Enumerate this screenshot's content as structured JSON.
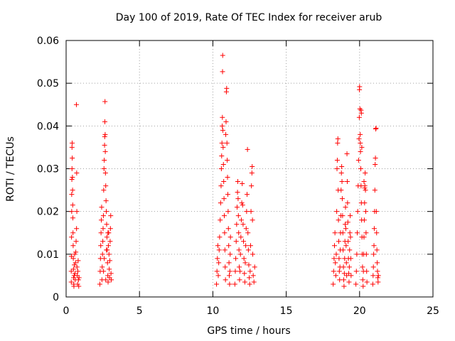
{
  "chart_data": {
    "type": "scatter",
    "title": "Day 100 of 2019, Rate Of TEC Index for receiver arub",
    "xlabel": "GPS time / hours",
    "ylabel": "ROTI / TECUs",
    "xlim": [
      0,
      25
    ],
    "ylim": [
      0,
      0.06
    ],
    "x_ticks": [
      0,
      5,
      10,
      15,
      20,
      25
    ],
    "y_ticks": [
      0,
      0.01,
      0.02,
      0.03,
      0.04,
      0.05,
      0.06
    ],
    "x_tick_labels": [
      "0",
      "5",
      "10",
      "15",
      "20",
      "25"
    ],
    "y_tick_labels": [
      "0",
      "0.01",
      "0.02",
      "0.03",
      "0.04",
      "0.05",
      "0.06"
    ],
    "grid": true,
    "marker": "+",
    "color": "#ff0000",
    "points": [
      [
        0.35,
        0.0035
      ],
      [
        0.35,
        0.006
      ],
      [
        0.36,
        0.0095
      ],
      [
        0.37,
        0.014
      ],
      [
        0.38,
        0.02
      ],
      [
        0.38,
        0.024
      ],
      [
        0.39,
        0.0275
      ],
      [
        0.4,
        0.03
      ],
      [
        0.4,
        0.035
      ],
      [
        0.41,
        0.036
      ],
      [
        0.42,
        0.0325
      ],
      [
        0.43,
        0.028
      ],
      [
        0.44,
        0.025
      ],
      [
        0.45,
        0.0215
      ],
      [
        0.46,
        0.0185
      ],
      [
        0.47,
        0.015
      ],
      [
        0.48,
        0.012
      ],
      [
        0.49,
        0.009
      ],
      [
        0.5,
        0.0065
      ],
      [
        0.51,
        0.0045
      ],
      [
        0.52,
        0.003
      ],
      [
        0.53,
        0.0025
      ],
      [
        0.55,
        0.005
      ],
      [
        0.56,
        0.0075
      ],
      [
        0.58,
        0.01
      ],
      [
        0.6,
        0.0055
      ],
      [
        0.62,
        0.004
      ],
      [
        0.64,
        0.008
      ],
      [
        0.66,
        0.0105
      ],
      [
        0.68,
        0.013
      ],
      [
        0.7,
        0.045
      ],
      [
        0.71,
        0.016
      ],
      [
        0.72,
        0.029
      ],
      [
        0.73,
        0.02
      ],
      [
        0.74,
        0.007
      ],
      [
        0.76,
        0.005
      ],
      [
        0.78,
        0.003
      ],
      [
        0.8,
        0.006
      ],
      [
        0.82,
        0.0085
      ],
      [
        0.84,
        0.004
      ],
      [
        0.86,
        0.0025
      ],
      [
        0.88,
        0.0045
      ],
      [
        2.3,
        0.003
      ],
      [
        2.32,
        0.006
      ],
      [
        2.34,
        0.009
      ],
      [
        2.36,
        0.012
      ],
      [
        2.38,
        0.015
      ],
      [
        2.4,
        0.018
      ],
      [
        2.42,
        0.021
      ],
      [
        2.44,
        0.004
      ],
      [
        2.46,
        0.007
      ],
      [
        2.48,
        0.01
      ],
      [
        2.5,
        0.013
      ],
      [
        2.52,
        0.016
      ],
      [
        2.54,
        0.019
      ],
      [
        2.56,
        0.025
      ],
      [
        2.58,
        0.03
      ],
      [
        2.6,
        0.032
      ],
      [
        2.62,
        0.0355
      ],
      [
        2.63,
        0.0375
      ],
      [
        2.64,
        0.041
      ],
      [
        2.65,
        0.0457
      ],
      [
        2.66,
        0.038
      ],
      [
        2.67,
        0.034
      ],
      [
        2.68,
        0.029
      ],
      [
        2.7,
        0.026
      ],
      [
        2.72,
        0.0225
      ],
      [
        2.74,
        0.02
      ],
      [
        2.76,
        0.017
      ],
      [
        2.78,
        0.014
      ],
      [
        2.8,
        0.011
      ],
      [
        2.82,
        0.008
      ],
      [
        2.84,
        0.005
      ],
      [
        2.86,
        0.0035
      ],
      [
        2.88,
        0.012
      ],
      [
        2.9,
        0.015
      ],
      [
        2.92,
        0.01
      ],
      [
        2.94,
        0.0065
      ],
      [
        2.96,
        0.0045
      ],
      [
        2.98,
        0.0085
      ],
      [
        3.0,
        0.013
      ],
      [
        3.02,
        0.016
      ],
      [
        3.04,
        0.019
      ],
      [
        3.06,
        0.0055
      ],
      [
        3.08,
        0.004
      ],
      [
        2.55,
        0.006
      ],
      [
        2.6,
        0.009
      ],
      [
        2.7,
        0.004
      ],
      [
        2.75,
        0.011
      ],
      [
        2.85,
        0.015
      ],
      [
        10.25,
        0.003
      ],
      [
        10.28,
        0.006
      ],
      [
        10.31,
        0.009
      ],
      [
        10.34,
        0.012
      ],
      [
        10.37,
        0.005
      ],
      [
        10.4,
        0.008
      ],
      [
        10.43,
        0.011
      ],
      [
        10.46,
        0.014
      ],
      [
        10.5,
        0.018
      ],
      [
        10.53,
        0.022
      ],
      [
        10.56,
        0.026
      ],
      [
        10.58,
        0.03
      ],
      [
        10.6,
        0.033
      ],
      [
        10.62,
        0.036
      ],
      [
        10.64,
        0.04
      ],
      [
        10.65,
        0.042
      ],
      [
        10.66,
        0.0527
      ],
      [
        10.67,
        0.0565
      ],
      [
        10.68,
        0.039
      ],
      [
        10.7,
        0.035
      ],
      [
        10.72,
        0.031
      ],
      [
        10.74,
        0.027
      ],
      [
        10.76,
        0.023
      ],
      [
        10.78,
        0.019
      ],
      [
        10.8,
        0.015
      ],
      [
        10.82,
        0.011
      ],
      [
        10.84,
        0.007
      ],
      [
        10.86,
        0.004
      ],
      [
        10.88,
        0.038
      ],
      [
        10.9,
        0.041
      ],
      [
        10.92,
        0.048
      ],
      [
        10.94,
        0.0488
      ],
      [
        10.96,
        0.036
      ],
      [
        10.98,
        0.032
      ],
      [
        11.0,
        0.028
      ],
      [
        11.02,
        0.024
      ],
      [
        11.04,
        0.02
      ],
      [
        11.06,
        0.016
      ],
      [
        11.08,
        0.012
      ],
      [
        11.1,
        0.008
      ],
      [
        11.12,
        0.005
      ],
      [
        11.14,
        0.003
      ],
      [
        11.16,
        0.006
      ],
      [
        11.18,
        0.01
      ],
      [
        11.2,
        0.014
      ],
      [
        11.5,
        0.003
      ],
      [
        11.53,
        0.006
      ],
      [
        11.56,
        0.009
      ],
      [
        11.59,
        0.013
      ],
      [
        11.62,
        0.017
      ],
      [
        11.65,
        0.021
      ],
      [
        11.68,
        0.0245
      ],
      [
        11.7,
        0.027
      ],
      [
        11.72,
        0.023
      ],
      [
        11.74,
        0.019
      ],
      [
        11.76,
        0.015
      ],
      [
        11.78,
        0.011
      ],
      [
        11.8,
        0.007
      ],
      [
        11.82,
        0.004
      ],
      [
        11.85,
        0.006
      ],
      [
        11.88,
        0.01
      ],
      [
        11.91,
        0.014
      ],
      [
        11.94,
        0.018
      ],
      [
        11.97,
        0.022
      ],
      [
        12.0,
        0.0265
      ],
      [
        12.03,
        0.0215
      ],
      [
        12.06,
        0.017
      ],
      [
        12.09,
        0.013
      ],
      [
        12.12,
        0.009
      ],
      [
        12.15,
        0.0055
      ],
      [
        12.18,
        0.0035
      ],
      [
        12.21,
        0.008
      ],
      [
        12.24,
        0.012
      ],
      [
        12.27,
        0.016
      ],
      [
        12.3,
        0.02
      ],
      [
        12.33,
        0.024
      ],
      [
        12.36,
        0.0345
      ],
      [
        12.39,
        0.015
      ],
      [
        12.42,
        0.011
      ],
      [
        12.45,
        0.0075
      ],
      [
        12.48,
        0.0045
      ],
      [
        12.51,
        0.003
      ],
      [
        12.54,
        0.006
      ],
      [
        12.57,
        0.012
      ],
      [
        12.6,
        0.02
      ],
      [
        12.63,
        0.026
      ],
      [
        12.66,
        0.029
      ],
      [
        12.68,
        0.0305
      ],
      [
        12.7,
        0.018
      ],
      [
        12.72,
        0.01
      ],
      [
        12.75,
        0.005
      ],
      [
        12.8,
        0.0035
      ],
      [
        12.85,
        0.007
      ],
      [
        18.2,
        0.003
      ],
      [
        18.23,
        0.006
      ],
      [
        18.26,
        0.009
      ],
      [
        18.29,
        0.012
      ],
      [
        18.32,
        0.015
      ],
      [
        18.35,
        0.008
      ],
      [
        18.38,
        0.005
      ],
      [
        18.41,
        0.01
      ],
      [
        18.44,
        0.02
      ],
      [
        18.46,
        0.03
      ],
      [
        18.48,
        0.032
      ],
      [
        18.5,
        0.036
      ],
      [
        18.52,
        0.037
      ],
      [
        18.54,
        0.025
      ],
      [
        18.56,
        0.018
      ],
      [
        18.58,
        0.013
      ],
      [
        18.6,
        0.009
      ],
      [
        18.62,
        0.006
      ],
      [
        18.64,
        0.004
      ],
      [
        18.66,
        0.007
      ],
      [
        18.68,
        0.011
      ],
      [
        18.7,
        0.015
      ],
      [
        18.72,
        0.019
      ],
      [
        18.74,
        0.025
      ],
      [
        18.76,
        0.029
      ],
      [
        18.78,
        0.0305
      ],
      [
        18.8,
        0.027
      ],
      [
        18.82,
        0.023
      ],
      [
        18.84,
        0.019
      ],
      [
        18.86,
        0.015
      ],
      [
        18.88,
        0.011
      ],
      [
        18.9,
        0.007
      ],
      [
        18.92,
        0.004
      ],
      [
        18.94,
        0.0025
      ],
      [
        18.96,
        0.0055
      ],
      [
        18.98,
        0.009
      ],
      [
        19.0,
        0.013
      ],
      [
        19.02,
        0.017
      ],
      [
        19.04,
        0.021
      ],
      [
        19.06,
        0.016
      ],
      [
        19.08,
        0.012
      ],
      [
        19.1,
        0.008
      ],
      [
        19.12,
        0.005
      ],
      [
        19.14,
        0.0335
      ],
      [
        19.16,
        0.027
      ],
      [
        19.18,
        0.022
      ],
      [
        19.2,
        0.0175
      ],
      [
        19.22,
        0.013
      ],
      [
        19.24,
        0.009
      ],
      [
        19.26,
        0.0055
      ],
      [
        19.28,
        0.0035
      ],
      [
        19.3,
        0.007
      ],
      [
        19.32,
        0.011
      ],
      [
        19.34,
        0.015
      ],
      [
        19.36,
        0.019
      ],
      [
        19.38,
        0.014
      ],
      [
        19.4,
        0.009
      ],
      [
        19.42,
        0.005
      ],
      [
        19.75,
        0.003
      ],
      [
        19.78,
        0.006
      ],
      [
        19.81,
        0.01
      ],
      [
        19.84,
        0.015
      ],
      [
        19.87,
        0.02
      ],
      [
        19.9,
        0.026
      ],
      [
        19.93,
        0.032
      ],
      [
        19.96,
        0.037
      ],
      [
        19.98,
        0.042
      ],
      [
        19.99,
        0.0485
      ],
      [
        20.0,
        0.0492
      ],
      [
        20.02,
        0.044
      ],
      [
        20.04,
        0.038
      ],
      [
        20.06,
        0.034
      ],
      [
        20.08,
        0.03
      ],
      [
        20.1,
        0.026
      ],
      [
        20.12,
        0.022
      ],
      [
        20.14,
        0.018
      ],
      [
        20.16,
        0.014
      ],
      [
        20.18,
        0.01
      ],
      [
        20.2,
        0.007
      ],
      [
        20.22,
        0.004
      ],
      [
        20.24,
        0.0025
      ],
      [
        20.26,
        0.006
      ],
      [
        20.28,
        0.01
      ],
      [
        20.3,
        0.014
      ],
      [
        20.32,
        0.018
      ],
      [
        20.34,
        0.022
      ],
      [
        20.36,
        0.026
      ],
      [
        20.38,
        0.029
      ],
      [
        20.4,
        0.025
      ],
      [
        20.42,
        0.02
      ],
      [
        20.44,
        0.015
      ],
      [
        20.46,
        0.01
      ],
      [
        20.48,
        0.006
      ],
      [
        20.5,
        0.0035
      ],
      [
        20.1,
        0.0437
      ],
      [
        20.12,
        0.043
      ],
      [
        20.15,
        0.035
      ],
      [
        20.05,
        0.036
      ],
      [
        20.3,
        0.027
      ],
      [
        20.35,
        0.0255
      ],
      [
        20.9,
        0.003
      ],
      [
        20.92,
        0.005
      ],
      [
        20.94,
        0.007
      ],
      [
        20.96,
        0.01
      ],
      [
        20.98,
        0.012
      ],
      [
        21.0,
        0.016
      ],
      [
        21.02,
        0.02
      ],
      [
        21.04,
        0.025
      ],
      [
        21.06,
        0.031
      ],
      [
        21.08,
        0.0325
      ],
      [
        21.1,
        0.0393
      ],
      [
        21.12,
        0.0395
      ],
      [
        21.14,
        0.02
      ],
      [
        21.16,
        0.015
      ],
      [
        21.18,
        0.011
      ],
      [
        21.2,
        0.008
      ],
      [
        21.22,
        0.006
      ],
      [
        21.24,
        0.0045
      ],
      [
        21.26,
        0.0035
      ],
      [
        21.28,
        0.005
      ]
    ]
  }
}
